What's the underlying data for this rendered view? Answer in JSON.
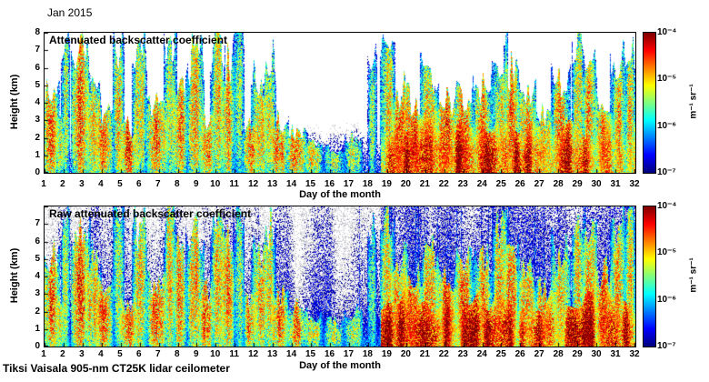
{
  "figure": {
    "date_label": "Jan 2015",
    "footer": "Tiksi Vaisala 905-nm CT25K lidar ceilometer"
  },
  "colorbar": {
    "ticks": [
      "10⁻⁴",
      "10⁻⁵",
      "10⁻⁶",
      "10⁻⁷"
    ],
    "unit": "m⁻¹ sr⁻¹",
    "colormap": "jet",
    "scale": "log",
    "range": [
      1e-07,
      0.0001
    ]
  },
  "chart_data": [
    {
      "type": "heatmap",
      "title": "Attenuated backscatter coefficient",
      "xlabel": "Day of the month",
      "ylabel": "Height (km)",
      "xlim": [
        1,
        32
      ],
      "ylim": [
        0,
        8
      ],
      "xticks": [
        1,
        2,
        3,
        4,
        5,
        6,
        7,
        8,
        9,
        10,
        11,
        12,
        13,
        14,
        15,
        16,
        17,
        18,
        19,
        20,
        21,
        22,
        23,
        24,
        25,
        26,
        27,
        28,
        29,
        30,
        31,
        32
      ],
      "yticks": [
        0,
        1,
        2,
        3,
        4,
        5,
        6,
        7,
        8
      ],
      "raw": false,
      "seed": 42
    },
    {
      "type": "heatmap",
      "title": "Raw attenuated backscatter coefficient",
      "xlabel": "Day of the month",
      "ylabel": "Height (km)",
      "xlim": [
        1,
        32
      ],
      "ylim": [
        0,
        8
      ],
      "xticks": [
        1,
        2,
        3,
        4,
        5,
        6,
        7,
        8,
        9,
        10,
        11,
        12,
        13,
        14,
        15,
        16,
        17,
        18,
        19,
        20,
        21,
        22,
        23,
        24,
        25,
        26,
        27,
        28,
        29,
        30,
        31,
        32
      ],
      "yticks": [
        0,
        1,
        2,
        3,
        4,
        5,
        6,
        7
      ],
      "raw": true,
      "seed": 1337
    }
  ],
  "events": [
    [
      1.3,
      5.2,
      0.5,
      -4.6
    ],
    [
      1.8,
      3.0,
      0.4,
      -5.0
    ],
    [
      2.1,
      7.4,
      0.25,
      -5.2
    ],
    [
      2.9,
      6.6,
      0.5,
      -4.5
    ],
    [
      3.5,
      5.0,
      0.5,
      -4.8
    ],
    [
      4.1,
      3.6,
      0.5,
      -4.6
    ],
    [
      4.9,
      7.6,
      0.3,
      -4.8
    ],
    [
      5.4,
      2.6,
      0.5,
      -4.5
    ],
    [
      6.0,
      7.0,
      0.4,
      -4.9
    ],
    [
      6.9,
      3.8,
      0.6,
      -4.6
    ],
    [
      7.6,
      7.4,
      0.35,
      -5.0
    ],
    [
      8.1,
      5.2,
      0.4,
      -4.7
    ],
    [
      8.9,
      6.6,
      0.5,
      -4.8
    ],
    [
      9.5,
      3.2,
      0.4,
      -4.5
    ],
    [
      10.1,
      7.0,
      0.4,
      -4.9
    ],
    [
      10.6,
      6.2,
      0.4,
      -4.7
    ],
    [
      11.2,
      7.4,
      0.3,
      -5.1
    ],
    [
      11.8,
      2.6,
      0.4,
      -4.6
    ],
    [
      12.3,
      5.6,
      0.45,
      -4.8
    ],
    [
      12.8,
      6.6,
      0.35,
      -5.0
    ],
    [
      13.3,
      3.0,
      0.5,
      -4.6
    ],
    [
      14.2,
      2.4,
      0.6,
      -4.7
    ],
    [
      15.1,
      1.8,
      0.5,
      -4.9
    ],
    [
      16.2,
      1.4,
      0.6,
      -5.2
    ],
    [
      17.2,
      2.0,
      0.5,
      -5.0
    ],
    [
      18.2,
      6.6,
      0.25,
      -5.3
    ],
    [
      19.0,
      7.2,
      0.4,
      -4.9
    ],
    [
      19.6,
      5.0,
      0.5,
      -4.6
    ],
    [
      20.3,
      4.2,
      0.6,
      -4.5
    ],
    [
      21.2,
      5.6,
      0.5,
      -4.7
    ],
    [
      22.1,
      4.2,
      0.6,
      -4.5
    ],
    [
      23.0,
      4.6,
      0.5,
      -4.6
    ],
    [
      24.0,
      5.2,
      0.5,
      -4.7
    ],
    [
      24.9,
      7.2,
      0.4,
      -4.8
    ],
    [
      25.5,
      6.0,
      0.4,
      -4.6
    ],
    [
      26.3,
      4.4,
      0.5,
      -4.5
    ],
    [
      27.2,
      3.6,
      0.5,
      -4.6
    ],
    [
      28.1,
      5.6,
      0.5,
      -4.7
    ],
    [
      29.0,
      7.5,
      0.35,
      -4.9
    ],
    [
      29.6,
      6.0,
      0.4,
      -4.7
    ],
    [
      30.3,
      4.2,
      0.5,
      -4.5
    ],
    [
      31.1,
      6.6,
      0.4,
      -4.8
    ],
    [
      31.7,
      7.2,
      0.3,
      -4.9
    ]
  ],
  "late_period": {
    "start_day": 18.65,
    "max_top_km": 2.9
  }
}
